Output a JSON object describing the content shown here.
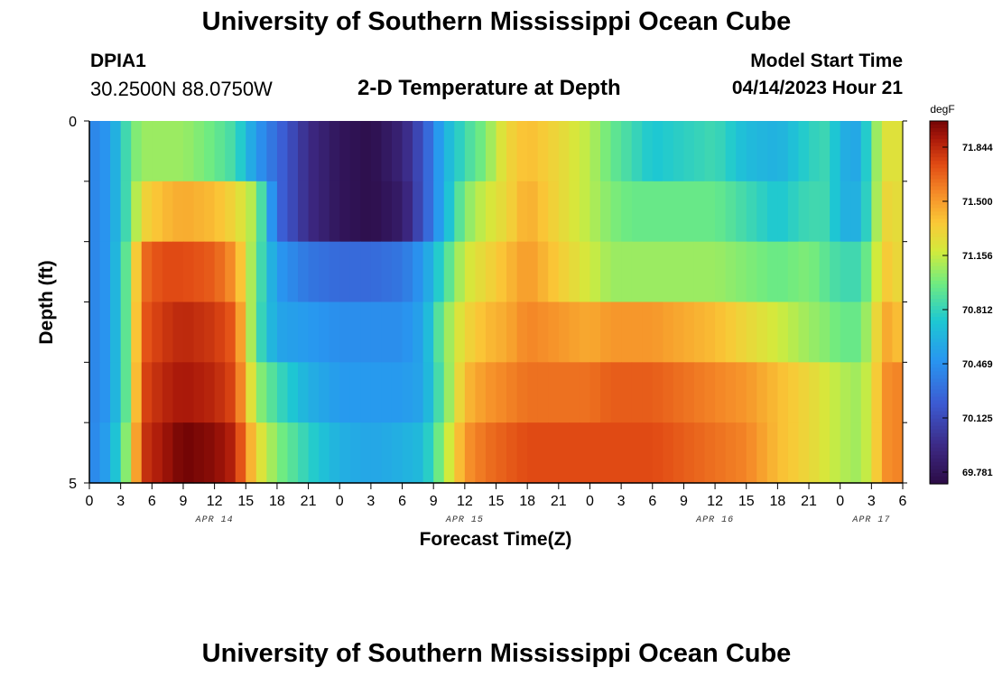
{
  "header": {
    "title": "University of Southern Mississippi Ocean Cube",
    "station_id": "DPIA1",
    "station_coords": "30.2500N  88.0750W",
    "subtitle": "2-D Temperature at Depth",
    "model_start_label": "Model Start Time",
    "model_start_value": "04/14/2023 Hour 21"
  },
  "footer": {
    "title": "University of Southern Mississippi Ocean Cube"
  },
  "chart_data": {
    "type": "heatmap",
    "title": "2-D Temperature at Depth",
    "xlabel": "Forecast Time(Z)",
    "ylabel": "Depth (ft)",
    "x_tick_labels": [
      "0",
      "3",
      "6",
      "9",
      "12",
      "15",
      "18",
      "21",
      "0",
      "3",
      "6",
      "9",
      "12",
      "15",
      "18",
      "21",
      "0",
      "3",
      "6",
      "9",
      "12",
      "15",
      "18",
      "21",
      "0",
      "3",
      "6"
    ],
    "y_tick_labels": [
      "0",
      "5"
    ],
    "ylim": [
      0,
      5
    ],
    "x_hours_range": [
      0,
      78
    ],
    "date_labels": [
      {
        "text": "APR 14",
        "hour": 12
      },
      {
        "text": "APR 15",
        "hour": 36
      },
      {
        "text": "APR 16",
        "hour": 60
      },
      {
        "text": "APR 17",
        "hour": 75
      }
    ],
    "colorbar": {
      "unit": "degF",
      "ticks": [
        "71.844",
        "71.500",
        "71.156",
        "70.812",
        "70.469",
        "70.125",
        "69.781"
      ],
      "min": 69.781,
      "max": 71.844
    },
    "depth_levels": 5,
    "temperature_profile": {
      "hours": [
        0,
        2,
        4,
        5,
        7,
        9,
        12,
        14,
        16,
        18,
        21,
        24,
        27,
        30,
        32,
        34,
        36,
        38,
        40,
        42,
        45,
        48,
        50,
        52,
        54,
        57,
        60,
        63,
        66,
        69,
        71,
        72,
        74,
        75,
        76,
        77,
        78
      ],
      "layers": [
        [
          70.4,
          70.5,
          70.9,
          71.0,
          71.0,
          71.0,
          70.9,
          70.8,
          70.5,
          70.3,
          70.0,
          69.85,
          69.8,
          69.95,
          70.2,
          70.6,
          70.8,
          70.95,
          71.2,
          71.3,
          71.2,
          71.05,
          70.9,
          70.8,
          70.7,
          70.75,
          70.8,
          70.65,
          70.6,
          70.75,
          70.8,
          70.6,
          70.55,
          70.9,
          71.1,
          71.2,
          71.1
        ],
        [
          70.4,
          70.5,
          70.9,
          71.2,
          71.3,
          71.35,
          71.3,
          71.2,
          71.0,
          70.3,
          70.0,
          69.85,
          69.8,
          69.9,
          70.2,
          70.6,
          70.95,
          71.1,
          71.2,
          71.35,
          71.2,
          71.05,
          70.95,
          70.9,
          70.9,
          70.9,
          70.9,
          70.8,
          70.7,
          70.8,
          70.8,
          70.6,
          70.6,
          70.9,
          71.15,
          71.25,
          71.1
        ],
        [
          70.4,
          70.5,
          71.0,
          71.5,
          71.6,
          71.6,
          71.55,
          71.4,
          70.9,
          70.5,
          70.35,
          70.3,
          70.3,
          70.35,
          70.5,
          70.8,
          71.1,
          71.2,
          71.3,
          71.4,
          71.25,
          71.1,
          71.0,
          71.0,
          71.0,
          71.0,
          71.0,
          70.95,
          70.9,
          70.95,
          70.85,
          70.8,
          70.8,
          71.0,
          71.2,
          71.3,
          71.1
        ],
        [
          70.4,
          70.5,
          71.0,
          71.55,
          71.65,
          71.7,
          71.65,
          71.55,
          70.85,
          70.55,
          70.5,
          70.45,
          70.45,
          70.45,
          70.55,
          70.95,
          71.2,
          71.3,
          71.35,
          71.45,
          71.4,
          71.35,
          71.4,
          71.4,
          71.4,
          71.35,
          71.3,
          71.2,
          71.1,
          71.0,
          70.95,
          70.9,
          70.9,
          71.1,
          71.3,
          71.4,
          71.2
        ],
        [
          70.4,
          70.5,
          71.0,
          71.6,
          71.7,
          71.75,
          71.7,
          71.6,
          71.0,
          70.8,
          70.6,
          70.5,
          70.5,
          70.5,
          70.55,
          70.9,
          71.3,
          71.4,
          71.45,
          71.5,
          71.5,
          71.5,
          71.55,
          71.55,
          71.55,
          71.5,
          71.45,
          71.4,
          71.3,
          71.2,
          71.1,
          71.05,
          71.0,
          71.15,
          71.35,
          71.5,
          71.4
        ],
        [
          70.4,
          70.55,
          71.1,
          71.65,
          71.75,
          71.85,
          71.8,
          71.7,
          71.2,
          70.95,
          70.75,
          70.6,
          70.55,
          70.6,
          70.65,
          71.0,
          71.4,
          71.5,
          71.55,
          71.6,
          71.6,
          71.6,
          71.6,
          71.6,
          71.6,
          71.55,
          71.5,
          71.45,
          71.3,
          71.2,
          71.1,
          71.05,
          71.0,
          71.15,
          71.35,
          71.5,
          71.4
        ]
      ]
    },
    "colors": {
      "background": "#ffffff",
      "axis": "#000000"
    }
  }
}
